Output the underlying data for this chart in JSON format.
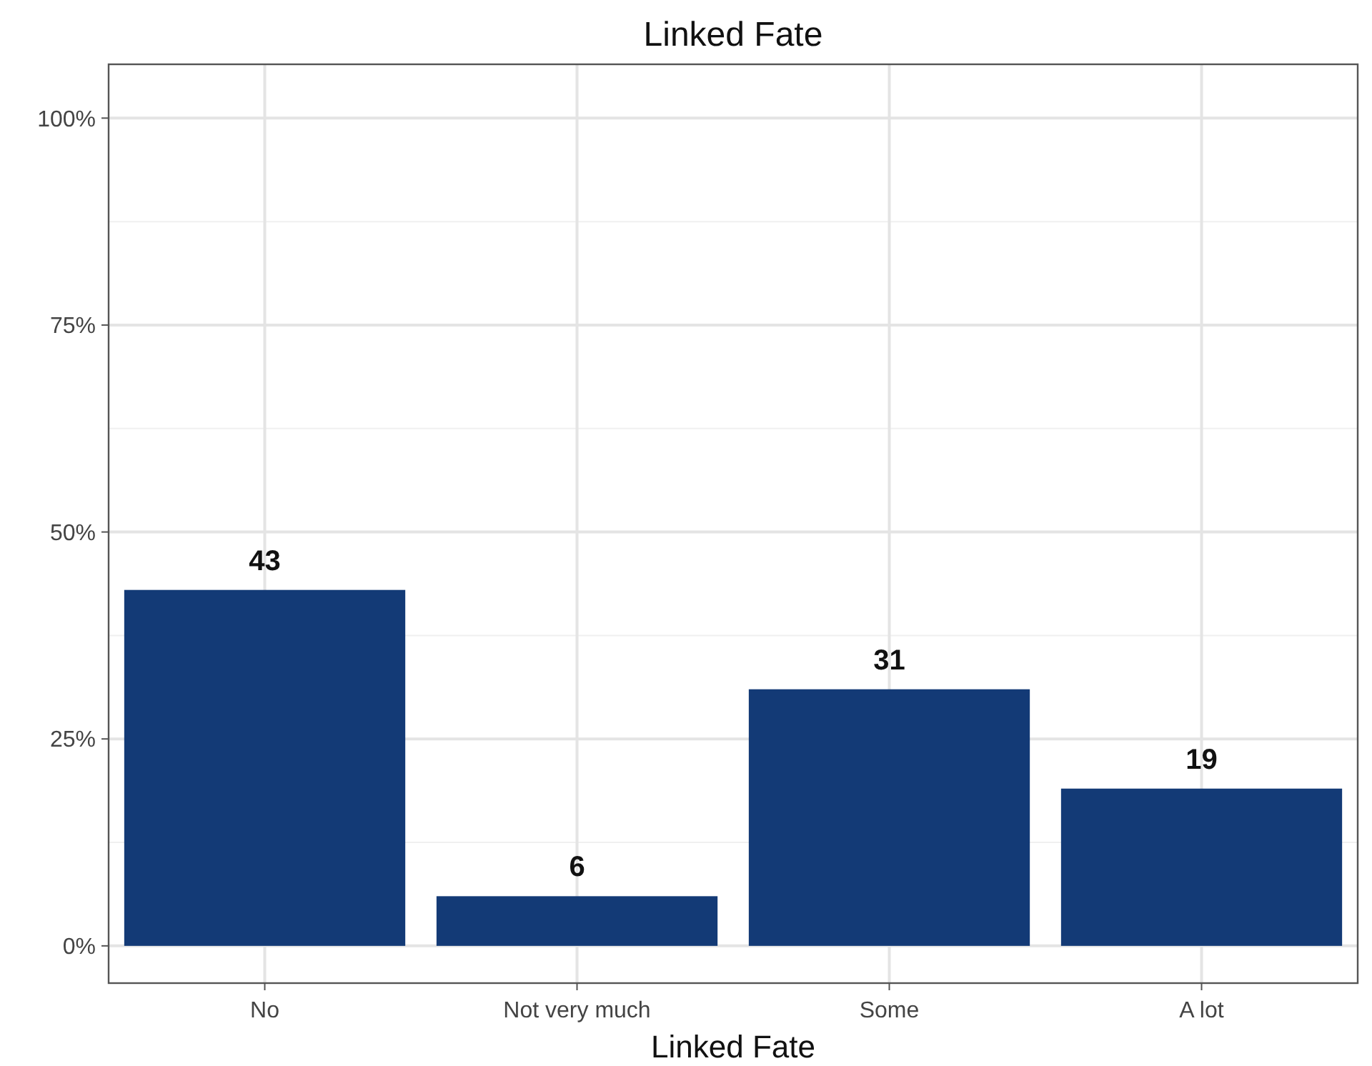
{
  "chart_data": {
    "type": "bar",
    "title": "Linked Fate",
    "xlabel": "Linked Fate",
    "categories": [
      "No",
      "Not very much",
      "Some",
      "A lot"
    ],
    "values": [
      43,
      6,
      31,
      19
    ],
    "color": "#133a76",
    "ylim": [
      -4.5,
      106.5
    ],
    "yticks": [
      {
        "value": 0,
        "label": "0%"
      },
      {
        "value": 25,
        "label": "25%"
      },
      {
        "value": 50,
        "label": "50%"
      },
      {
        "value": 75,
        "label": "75%"
      },
      {
        "value": 100,
        "label": "100%"
      }
    ],
    "grid": true,
    "data_labels": true
  }
}
